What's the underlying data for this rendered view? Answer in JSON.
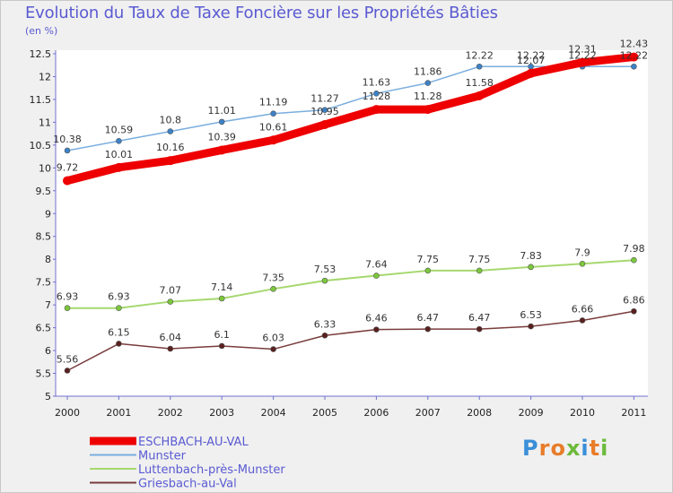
{
  "header": {
    "title": "Evolution du Taux de Taxe Foncière sur les Propriétés Bâties",
    "unit": "(en %)"
  },
  "logo": {
    "text": "Proxiti"
  },
  "colors": {
    "background": "#f0f0f0",
    "title": "#5a5ad2",
    "axis": "#7070d0"
  },
  "chart_data": {
    "type": "line",
    "title": "Evolution du Taux de Taxe Foncière sur les Propriétés Bâties",
    "ylabel": "(en %)",
    "xlabel": "",
    "ylim": [
      5,
      12.5
    ],
    "y_ticks": [
      "5",
      "5.5",
      "6",
      "6.5",
      "7",
      "7.5",
      "8",
      "8.5",
      "9",
      "9.5",
      "10",
      "10.5",
      "11",
      "11.5",
      "12",
      "12.5"
    ],
    "categories": [
      "2000",
      "2001",
      "2002",
      "2003",
      "2004",
      "2005",
      "2006",
      "2007",
      "2008",
      "2009",
      "2010",
      "2011"
    ],
    "legend_position": "bottom-left",
    "series": [
      {
        "name": "ESCHBACH-AU-VAL",
        "color": "#ee0000",
        "marker_color": "#ee0000",
        "values": [
          9.72,
          10.01,
          10.16,
          10.39,
          10.61,
          10.95,
          11.28,
          11.28,
          11.58,
          12.07,
          12.31,
          12.43
        ],
        "labels": [
          "9.72",
          "10.01",
          "10.16",
          "10.39",
          "10.61",
          "10.95",
          "11.28",
          "11.28",
          "11.58",
          "12.07",
          "12.31",
          "12.43"
        ]
      },
      {
        "name": "Munster",
        "color": "#7aaede",
        "marker_color": "#3c82c8",
        "values": [
          10.38,
          10.59,
          10.8,
          11.01,
          11.19,
          11.27,
          11.63,
          11.86,
          12.22,
          12.22,
          12.22,
          12.22
        ],
        "labels": [
          "10.38",
          "10.59",
          "10.8",
          "11.01",
          "11.19",
          "11.27",
          "11.63",
          "11.86",
          "12.22",
          "12.22",
          "12.22",
          "12.22"
        ]
      },
      {
        "name": "Luttenbach-près-Munster",
        "color": "#a6d86e",
        "marker_color": "#7cc83c",
        "values": [
          6.93,
          6.93,
          7.07,
          7.14,
          7.35,
          7.53,
          7.64,
          7.75,
          7.75,
          7.83,
          7.9,
          7.98
        ],
        "labels": [
          "6.93",
          "6.93",
          "7.07",
          "7.14",
          "7.35",
          "7.53",
          "7.64",
          "7.75",
          "7.75",
          "7.83",
          "7.9",
          "7.98"
        ]
      },
      {
        "name": "Griesbach-au-Val",
        "color": "#7a3c3c",
        "marker_color": "#5a2020",
        "values": [
          5.56,
          6.15,
          6.04,
          6.1,
          6.03,
          6.33,
          6.46,
          6.47,
          6.47,
          6.53,
          6.66,
          6.86
        ],
        "labels": [
          "5.56",
          "6.15",
          "6.04",
          "6.1",
          "6.03",
          "6.33",
          "6.46",
          "6.47",
          "6.47",
          "6.53",
          "6.66",
          "6.86"
        ]
      }
    ]
  }
}
